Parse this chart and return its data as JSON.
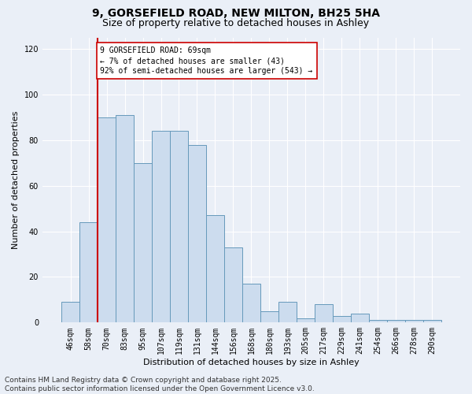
{
  "title_line1": "9, GORSEFIELD ROAD, NEW MILTON, BH25 5HA",
  "title_line2": "Size of property relative to detached houses in Ashley",
  "xlabel": "Distribution of detached houses by size in Ashley",
  "ylabel": "Number of detached properties",
  "categories": [
    "46sqm",
    "58sqm",
    "70sqm",
    "83sqm",
    "95sqm",
    "107sqm",
    "119sqm",
    "131sqm",
    "144sqm",
    "156sqm",
    "168sqm",
    "180sqm",
    "193sqm",
    "205sqm",
    "217sqm",
    "229sqm",
    "241sqm",
    "254sqm",
    "266sqm",
    "278sqm",
    "290sqm"
  ],
  "values": [
    9,
    44,
    90,
    91,
    70,
    84,
    84,
    78,
    47,
    33,
    17,
    5,
    9,
    2,
    8,
    3,
    4,
    1,
    1,
    1,
    1
  ],
  "bar_color": "#ccdcee",
  "bar_edge_color": "#6699bb",
  "vline_color": "#cc0000",
  "vline_x_index": 2,
  "annotation_text_line1": "9 GORSEFIELD ROAD: 69sqm",
  "annotation_text_line2": "← 7% of detached houses are smaller (43)",
  "annotation_text_line3": "92% of semi-detached houses are larger (543) →",
  "annotation_box_color": "white",
  "annotation_box_edge": "#cc0000",
  "ylim": [
    0,
    125
  ],
  "yticks": [
    0,
    20,
    40,
    60,
    80,
    100,
    120
  ],
  "background_color": "#eaeff7",
  "grid_color": "white",
  "footer_text": "Contains HM Land Registry data © Crown copyright and database right 2025.\nContains public sector information licensed under the Open Government Licence v3.0.",
  "title_fontsize": 10,
  "subtitle_fontsize": 9,
  "axis_label_fontsize": 8,
  "tick_fontsize": 7,
  "annotation_fontsize": 7,
  "footer_fontsize": 6.5
}
